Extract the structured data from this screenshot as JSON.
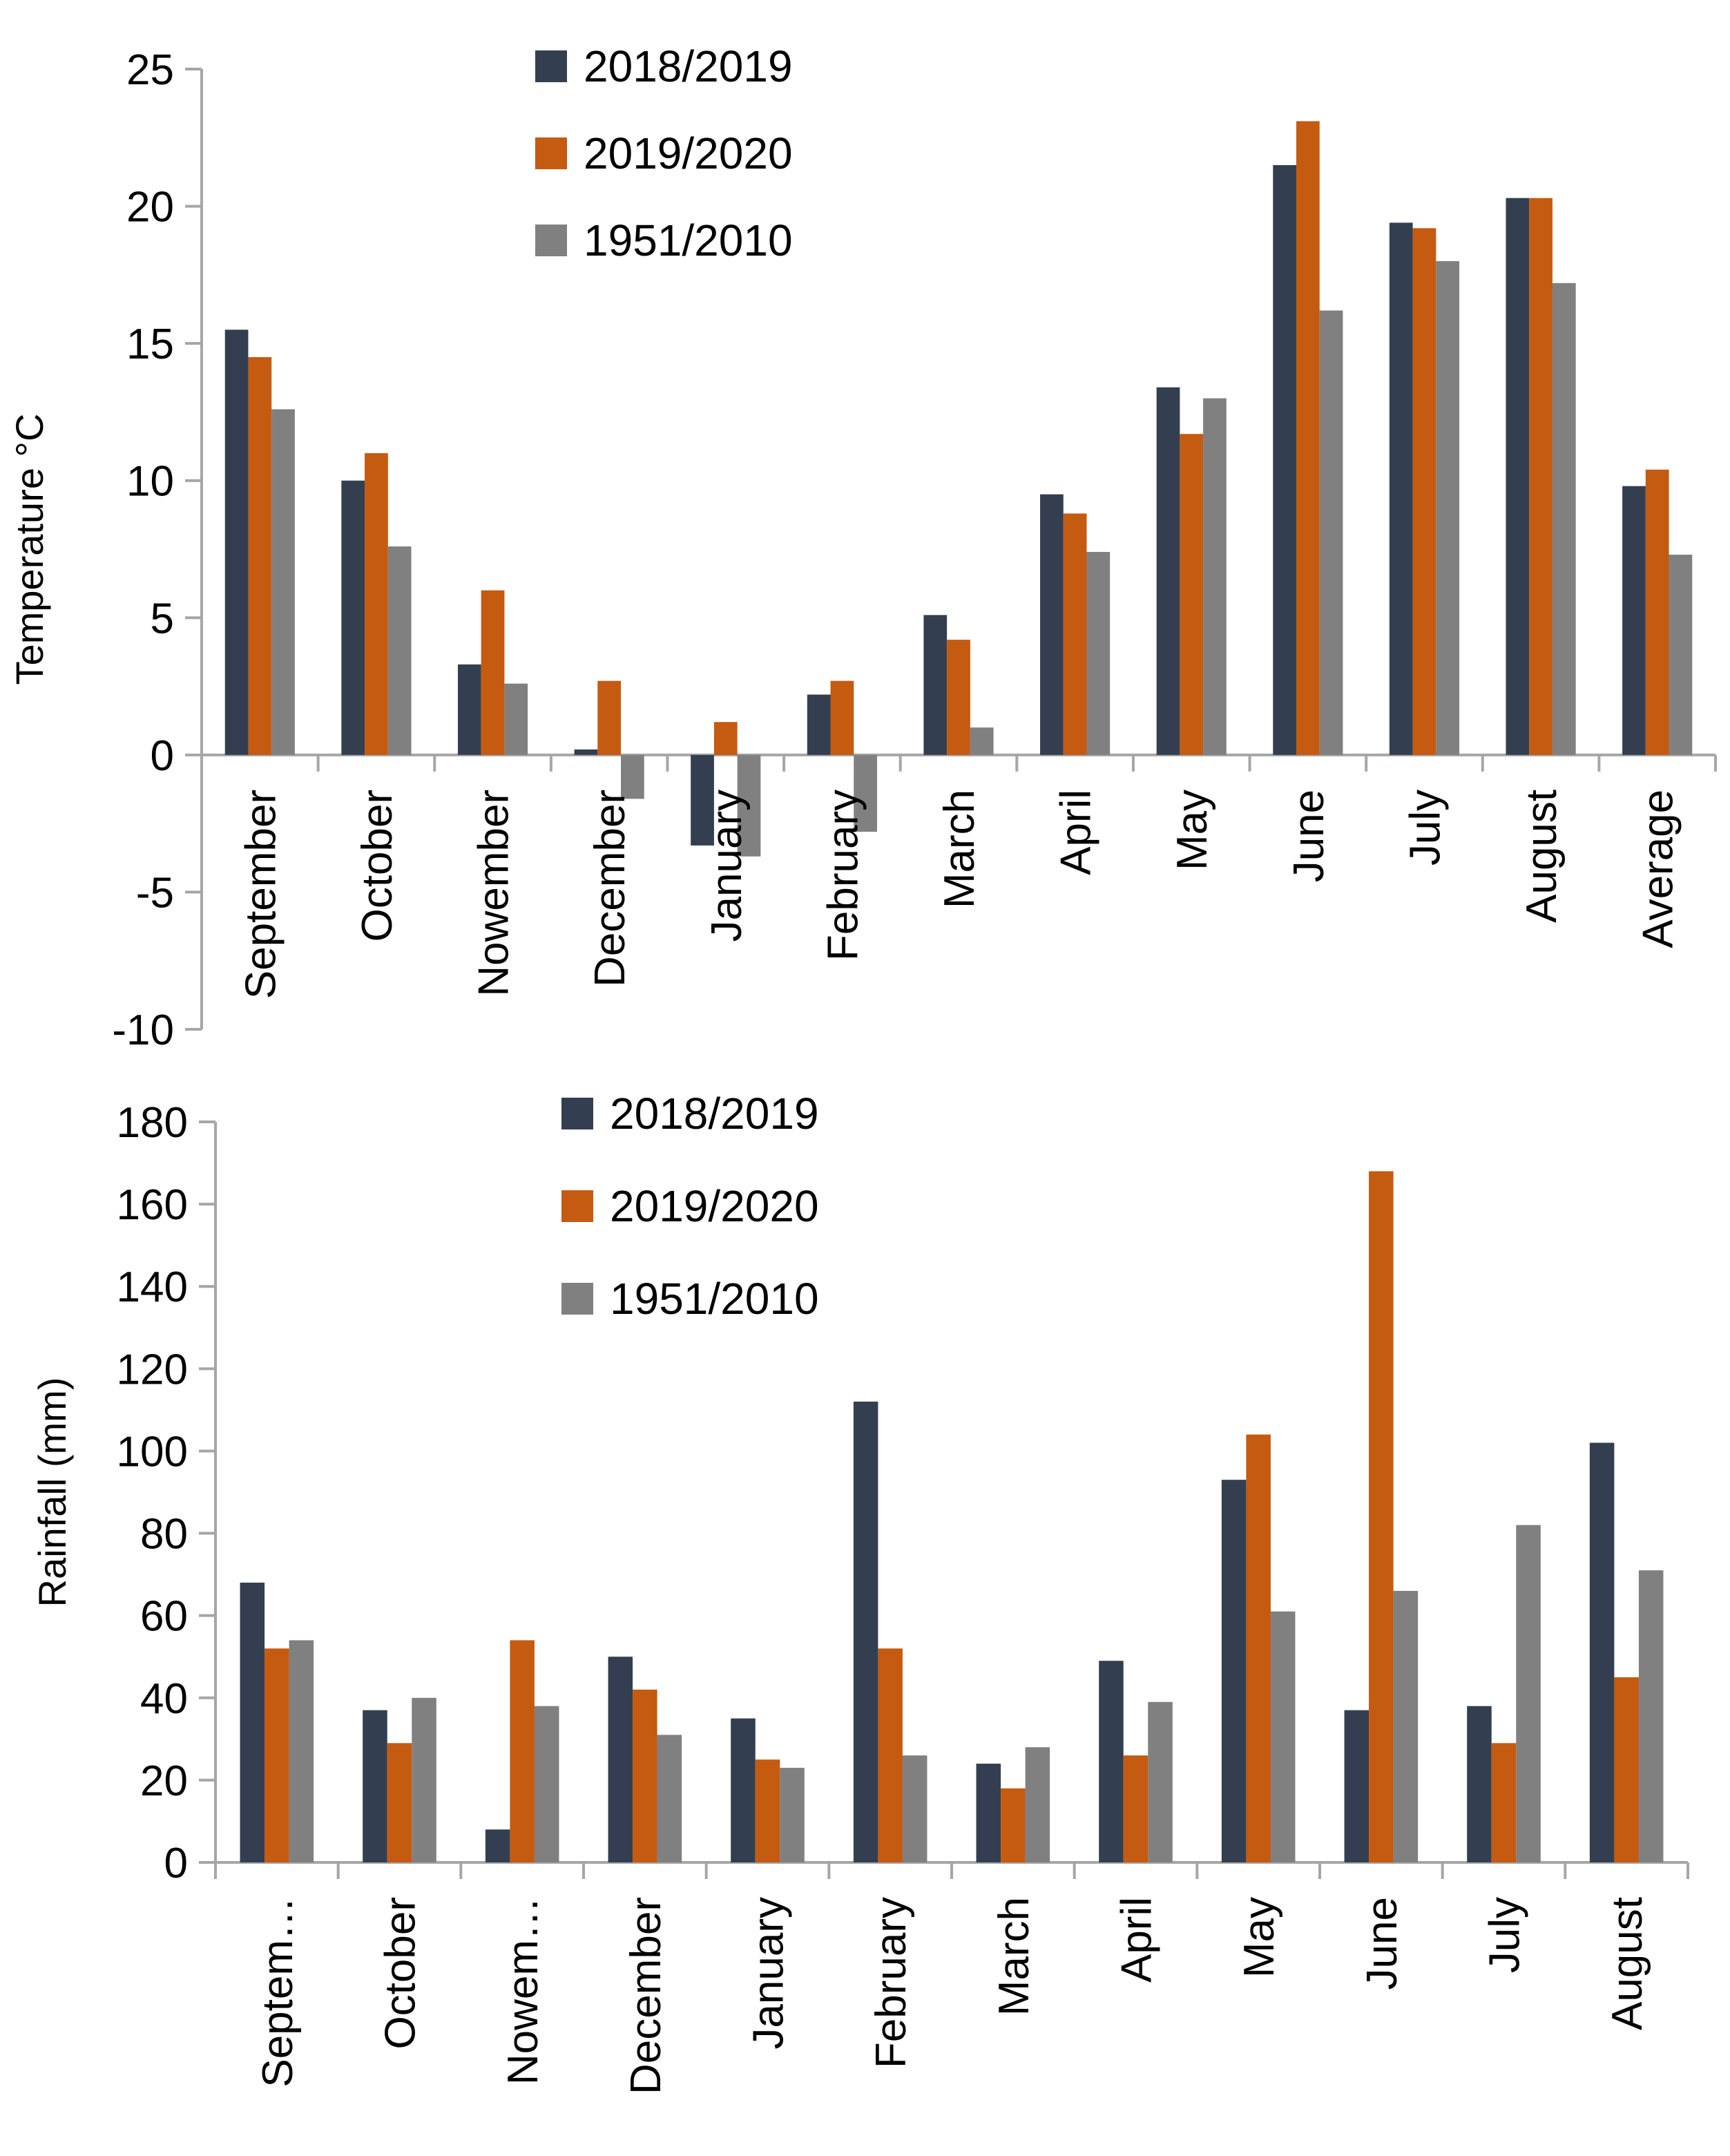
{
  "colors": {
    "series_2018_2019": "#333f50",
    "series_2019_2020": "#c55a11",
    "series_1951_2010": "#808080",
    "axis": "#a6a6a6"
  },
  "chart_data": [
    {
      "type": "bar",
      "title": "",
      "xlabel": "",
      "ylabel": "Temperature °C",
      "ylim": [
        -10,
        25
      ],
      "yticks": [
        "25",
        "20",
        "15",
        "10",
        "5",
        "0",
        "-5",
        "-10"
      ],
      "legend_position": "top-center",
      "categories": [
        "September",
        "October",
        "Nowember",
        "December",
        "January",
        "February",
        "March",
        "April",
        "May",
        "June",
        "July",
        "August",
        "Average"
      ],
      "series": [
        {
          "name": "2018/2019",
          "color_key": "series_2018_2019",
          "values": [
            15.5,
            10.0,
            3.3,
            0.2,
            -3.3,
            2.2,
            5.1,
            9.5,
            13.4,
            21.5,
            19.4,
            20.3,
            9.8
          ]
        },
        {
          "name": "2019/2020",
          "color_key": "series_2019_2020",
          "values": [
            14.5,
            11.0,
            6.0,
            2.7,
            1.2,
            2.7,
            4.2,
            8.8,
            11.7,
            23.1,
            19.2,
            20.3,
            10.4
          ]
        },
        {
          "name": "1951/2010",
          "color_key": "series_1951_2010",
          "values": [
            12.6,
            7.6,
            2.6,
            -1.6,
            -3.7,
            -2.8,
            1.0,
            7.4,
            13.0,
            16.2,
            18.0,
            17.2,
            7.3
          ]
        }
      ]
    },
    {
      "type": "bar",
      "title": "",
      "xlabel": "",
      "ylabel": "Rainfall (mm)",
      "ylim": [
        0,
        180
      ],
      "yticks": [
        "180",
        "160",
        "140",
        "120",
        "100",
        "80",
        "60",
        "40",
        "20",
        "0"
      ],
      "legend_position": "top-center",
      "categories": [
        "Septem…",
        "October",
        "Nowem…",
        "December",
        "January",
        "February",
        "March",
        "April",
        "May",
        "June",
        "July",
        "August"
      ],
      "series": [
        {
          "name": "2018/2019",
          "color_key": "series_2018_2019",
          "values": [
            68,
            37,
            8,
            50,
            35,
            112,
            24,
            49,
            93,
            37,
            38,
            102
          ]
        },
        {
          "name": "2019/2020",
          "color_key": "series_2019_2020",
          "values": [
            52,
            29,
            54,
            42,
            25,
            52,
            18,
            26,
            104,
            168,
            29,
            45
          ]
        },
        {
          "name": "1951/2010",
          "color_key": "series_1951_2010",
          "values": [
            54,
            40,
            38,
            31,
            23,
            26,
            28,
            39,
            61,
            66,
            82,
            71
          ]
        }
      ]
    }
  ]
}
